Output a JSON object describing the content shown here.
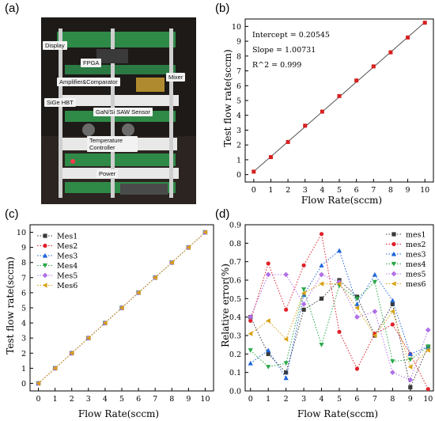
{
  "panel_labels": {
    "a": "(a)",
    "b": "(b)",
    "c": "(c)",
    "d": "(d)"
  },
  "photo": {
    "labels": {
      "display": "Display",
      "fpga": "FPGA",
      "amplifier": "Amplifier&Comparator",
      "mixer": "Mixer",
      "sige": "SiGe HBT",
      "gan": "GaN/Si SAW Sensor",
      "temperature": "Temperature Controller",
      "power": "Power"
    }
  },
  "chart_data": [
    {
      "panel": "b",
      "type": "scatter",
      "xlabel": "Flow Rate(sccm)",
      "ylabel": "Test flow rate(sccm)",
      "xlim": [
        -0.5,
        10.5
      ],
      "ylim": [
        -0.5,
        10.5
      ],
      "xticks": [
        "0",
        "1",
        "2",
        "3",
        "4",
        "5",
        "6",
        "7",
        "8",
        "9",
        "10"
      ],
      "yticks": [
        "0",
        "1",
        "2",
        "3",
        "4",
        "5",
        "6",
        "7",
        "8",
        "9",
        "10"
      ],
      "x": [
        0,
        1,
        2,
        3,
        4,
        5,
        6,
        7,
        8,
        9,
        10
      ],
      "y": [
        0.2,
        1.18,
        2.2,
        3.3,
        4.25,
        5.3,
        6.35,
        7.3,
        8.25,
        9.25,
        10.25
      ],
      "fit": {
        "intercept": 0.20545,
        "slope": 1.00731
      },
      "annotations": [
        "Intercept = 0.20545",
        "Slope = 1.00731",
        "R^2 = 0.999"
      ],
      "marker_color": "#d62020"
    },
    {
      "panel": "c",
      "type": "line",
      "xlabel": "Flow Rate(sccm)",
      "ylabel": "Test flow rate(sccm)",
      "xlim": [
        -0.5,
        10.5
      ],
      "ylim": [
        -0.5,
        10.5
      ],
      "xticks": [
        "0",
        "1",
        "2",
        "3",
        "4",
        "5",
        "6",
        "7",
        "8",
        "9",
        "10"
      ],
      "yticks": [
        "0",
        "1",
        "2",
        "3",
        "4",
        "5",
        "6",
        "7",
        "8",
        "9",
        "10"
      ],
      "legend_position": "top-left",
      "x": [
        0,
        1,
        2,
        3,
        4,
        5,
        6,
        7,
        8,
        9,
        10
      ],
      "series": [
        {
          "name": "Mes1",
          "color": "#3a3a3a",
          "marker": "square",
          "values": [
            0.0,
            1.0,
            2.0,
            3.0,
            4.0,
            5.0,
            6.0,
            7.0,
            8.0,
            9.0,
            10.0
          ]
        },
        {
          "name": "Mes2",
          "color": "#e0202a",
          "marker": "circle",
          "values": [
            0.0,
            1.0,
            2.0,
            3.0,
            4.0,
            5.0,
            6.0,
            7.0,
            8.0,
            9.0,
            10.0
          ]
        },
        {
          "name": "Mes3",
          "color": "#1f66d8",
          "marker": "triangle-up",
          "values": [
            0.0,
            1.0,
            2.0,
            3.0,
            4.0,
            5.0,
            6.0,
            7.0,
            8.0,
            9.0,
            10.0
          ]
        },
        {
          "name": "Mes4",
          "color": "#2aa84a",
          "marker": "triangle-down",
          "values": [
            0.0,
            1.0,
            2.0,
            3.0,
            4.0,
            5.0,
            6.0,
            7.0,
            8.0,
            9.0,
            10.0
          ]
        },
        {
          "name": "Mes5",
          "color": "#b070e8",
          "marker": "diamond",
          "values": [
            0.0,
            1.0,
            2.0,
            3.0,
            4.0,
            5.0,
            6.0,
            7.0,
            8.0,
            9.0,
            10.0
          ]
        },
        {
          "name": "Mes6",
          "color": "#d9a012",
          "marker": "triangle-left",
          "values": [
            0.0,
            1.0,
            2.0,
            3.0,
            4.0,
            5.0,
            6.0,
            7.0,
            8.0,
            9.0,
            10.0
          ]
        }
      ]
    },
    {
      "panel": "d",
      "type": "line",
      "xlabel": "Flow Rate(sccm)",
      "ylabel": "Relative error(%)",
      "xlim": [
        -0.3,
        10.3
      ],
      "ylim": [
        0,
        0.9
      ],
      "xticks": [
        "0",
        "1",
        "2",
        "3",
        "4",
        "5",
        "6",
        "7",
        "8",
        "9",
        "10"
      ],
      "yticks": [
        "0.0",
        "0.1",
        "0.2",
        "0.3",
        "0.4",
        "0.5",
        "0.6",
        "0.7",
        "0.8",
        "0.9"
      ],
      "legend_position": "top-right",
      "x": [
        0,
        1,
        2,
        3,
        4,
        5,
        6,
        7,
        8,
        9,
        10
      ],
      "series": [
        {
          "name": "mes1",
          "color": "#3a3a3a",
          "marker": "square",
          "values": [
            0.4,
            0.2,
            0.1,
            0.44,
            0.5,
            0.6,
            0.51,
            0.3,
            0.47,
            0.02,
            0.24
          ]
        },
        {
          "name": "mes2",
          "color": "#e0202a",
          "marker": "circle",
          "values": [
            0.38,
            0.69,
            0.44,
            0.68,
            0.85,
            0.32,
            0.12,
            0.31,
            0.36,
            0.2,
            0.01
          ]
        },
        {
          "name": "mes3",
          "color": "#1f66d8",
          "marker": "triangle-up",
          "values": [
            0.15,
            0.22,
            0.07,
            0.52,
            0.68,
            0.76,
            0.47,
            0.63,
            0.49,
            0.2,
            0.24
          ]
        },
        {
          "name": "mes4",
          "color": "#2aa84a",
          "marker": "triangle-down",
          "values": [
            0.22,
            0.13,
            0.15,
            0.55,
            0.25,
            0.57,
            0.5,
            0.59,
            0.16,
            0.17,
            0.24
          ]
        },
        {
          "name": "mes5",
          "color": "#b070e8",
          "marker": "diamond",
          "values": [
            0.4,
            0.63,
            0.63,
            0.47,
            0.63,
            0.59,
            0.4,
            0.43,
            0.1,
            0.06,
            0.33
          ]
        },
        {
          "name": "mes6",
          "color": "#d9a012",
          "marker": "triangle-left",
          "values": [
            0.31,
            0.38,
            0.28,
            0.53,
            0.58,
            0.58,
            0.45,
            0.3,
            0.43,
            0.13,
            0.22
          ]
        }
      ]
    }
  ]
}
